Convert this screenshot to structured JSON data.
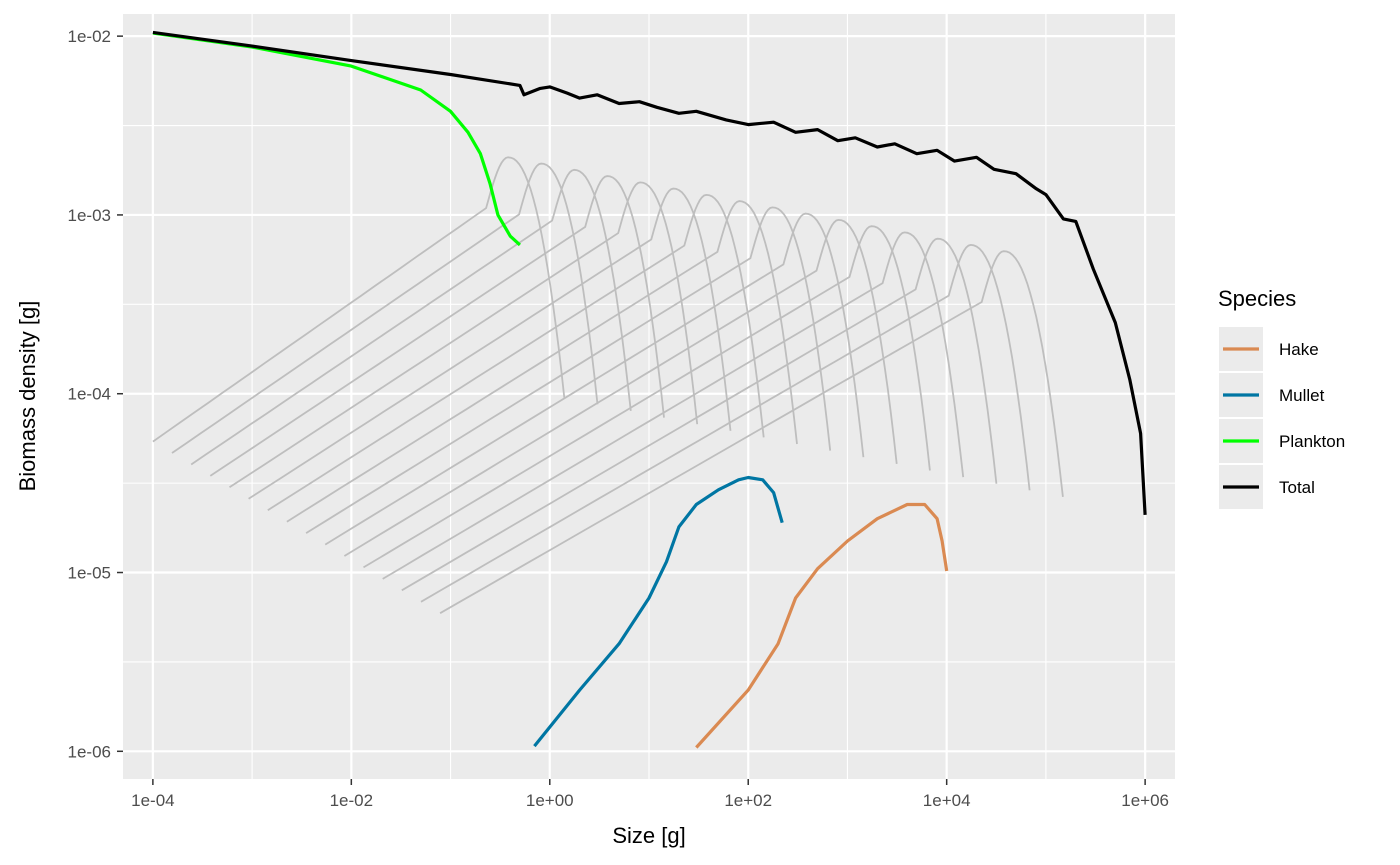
{
  "chart_data": {
    "type": "line",
    "title": "",
    "xlabel": "Size [g]",
    "ylabel": "Biomass density [g]",
    "x_scale": "log10",
    "y_scale": "log10",
    "xlim": [
      5e-05,
      2000000
    ],
    "ylim": [
      7e-07,
      0.0133
    ],
    "x_ticks": [
      {
        "value": 0.0001,
        "label": "1e-04"
      },
      {
        "value": 0.01,
        "label": "1e-02"
      },
      {
        "value": 1,
        "label": "1e+00"
      },
      {
        "value": 100,
        "label": "1e+02"
      },
      {
        "value": 10000,
        "label": "1e+04"
      },
      {
        "value": 1000000,
        "label": "1e+06"
      }
    ],
    "y_ticks": [
      {
        "value": 1e-06,
        "label": "1e-06"
      },
      {
        "value": 1e-05,
        "label": "1e-05"
      },
      {
        "value": 0.0001,
        "label": "1e-04"
      },
      {
        "value": 0.001,
        "label": "1e-03"
      },
      {
        "value": 0.01,
        "label": "1e-02"
      }
    ],
    "grid": true,
    "legend": {
      "title": "Species",
      "position": "right",
      "entries": [
        {
          "label": "Hake",
          "color": "#DA8A52"
        },
        {
          "label": "Mullet",
          "color": "#0076A3"
        },
        {
          "label": "Plankton",
          "color": "#00FF00"
        },
        {
          "label": "Total",
          "color": "#000000"
        }
      ]
    },
    "series": [
      {
        "name": "Total",
        "color": "#000000",
        "points": [
          [
            0.0001,
            0.0105
          ],
          [
            0.001,
            0.0088
          ],
          [
            0.01,
            0.0073
          ],
          [
            0.1,
            0.0061
          ],
          [
            0.5,
            0.0053
          ],
          [
            0.55,
            0.0047
          ],
          [
            0.8,
            0.0051
          ],
          [
            1.0,
            0.0052
          ],
          [
            1.5,
            0.0048
          ],
          [
            2,
            0.0045
          ],
          [
            3,
            0.0047
          ],
          [
            5,
            0.0042
          ],
          [
            8,
            0.0043
          ],
          [
            12,
            0.004
          ],
          [
            20,
            0.0037
          ],
          [
            30,
            0.0038
          ],
          [
            60,
            0.0034
          ],
          [
            100,
            0.0032
          ],
          [
            180,
            0.0033
          ],
          [
            300,
            0.0029
          ],
          [
            500,
            0.003
          ],
          [
            800,
            0.0026
          ],
          [
            1200,
            0.0027
          ],
          [
            2000,
            0.0024
          ],
          [
            3000,
            0.0025
          ],
          [
            5000,
            0.0022
          ],
          [
            8000,
            0.0023
          ],
          [
            12000,
            0.002
          ],
          [
            20000,
            0.0021
          ],
          [
            30000,
            0.0018
          ],
          [
            50000,
            0.0017
          ],
          [
            80000,
            0.0014
          ],
          [
            100000,
            0.0013
          ],
          [
            150000,
            0.00095
          ],
          [
            200000,
            0.00092
          ],
          [
            300000,
            0.0005
          ],
          [
            500000,
            0.00025
          ],
          [
            700000,
            0.00012
          ],
          [
            900000,
            6e-05
          ],
          [
            1000000,
            2.1e-05
          ]
        ]
      },
      {
        "name": "Plankton",
        "color": "#00FF00",
        "points": [
          [
            0.0001,
            0.0104
          ],
          [
            0.001,
            0.0087
          ],
          [
            0.01,
            0.0068
          ],
          [
            0.05,
            0.005
          ],
          [
            0.1,
            0.0038
          ],
          [
            0.15,
            0.0029
          ],
          [
            0.2,
            0.0022
          ],
          [
            0.25,
            0.0015
          ],
          [
            0.3,
            0.001
          ],
          [
            0.4,
            0.00076
          ],
          [
            0.5,
            0.00068
          ]
        ]
      },
      {
        "name": "Mullet",
        "color": "#0076A3",
        "points": [
          [
            0.7,
            1.07e-06
          ],
          [
            2,
            2.2e-06
          ],
          [
            5,
            4e-06
          ],
          [
            10,
            7.2e-06
          ],
          [
            15,
            1.15e-05
          ],
          [
            20,
            1.8e-05
          ],
          [
            30,
            2.4e-05
          ],
          [
            50,
            2.9e-05
          ],
          [
            80,
            3.3e-05
          ],
          [
            100,
            3.4e-05
          ],
          [
            140,
            3.3e-05
          ],
          [
            180,
            2.8e-05
          ],
          [
            220,
            1.9e-05
          ]
        ]
      },
      {
        "name": "Hake",
        "color": "#DA8A52",
        "points": [
          [
            30,
            1.05e-06
          ],
          [
            100,
            2.2e-06
          ],
          [
            200,
            4e-06
          ],
          [
            300,
            7.2e-06
          ],
          [
            500,
            1.05e-05
          ],
          [
            1000,
            1.5e-05
          ],
          [
            2000,
            2e-05
          ],
          [
            4000,
            2.4e-05
          ],
          [
            6000,
            2.4e-05
          ],
          [
            8000,
            2e-05
          ],
          [
            9000,
            1.5e-05
          ],
          [
            10000,
            1.02e-05
          ]
        ]
      }
    ],
    "background_curves_color": "#BEBEBE"
  }
}
